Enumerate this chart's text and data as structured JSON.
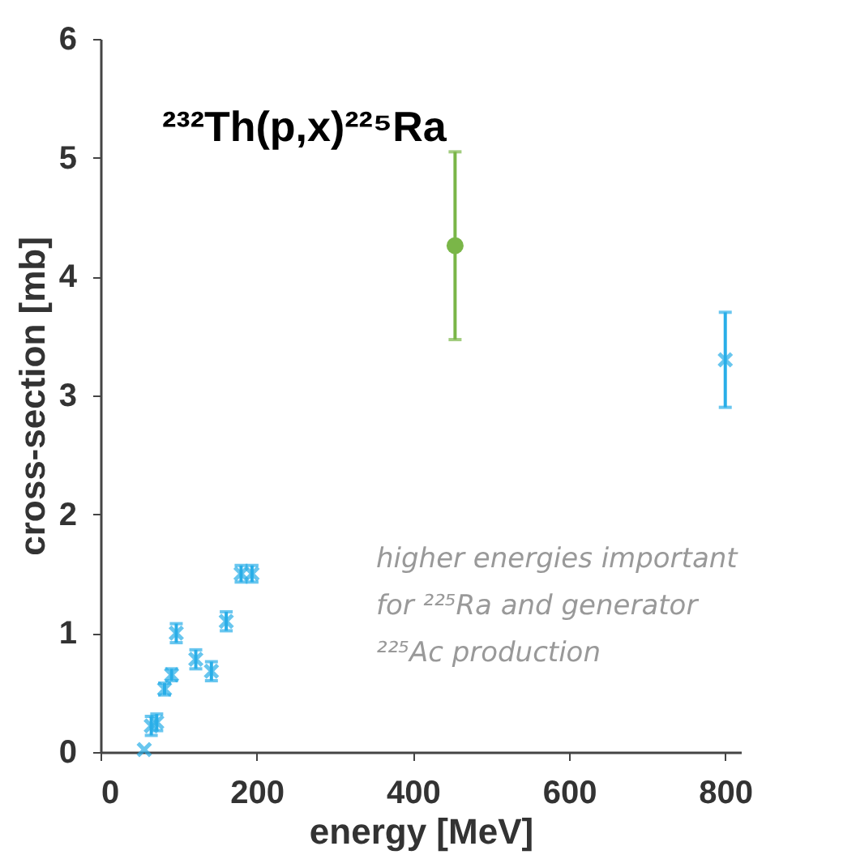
{
  "chart_data": {
    "type": "scatter",
    "title": "²³²Th(p,x)²²⁵Ra",
    "xlabel": "energy [MeV]",
    "ylabel": "cross-section [mb]",
    "annotations": [
      "higher energies important\nfor ²²⁵Ra and generator\n²²⁵Ac production"
    ],
    "series": [
      {
        "color": "#29aee8",
        "marker": "cross",
        "x": [
          56,
          65,
          72,
          82,
          91,
          97,
          122,
          142,
          161,
          180,
          194,
          800
        ],
        "values": [
          0.02,
          0.22,
          0.25,
          0.53,
          0.65,
          1.0,
          0.78,
          0.68,
          1.1,
          1.5,
          1.5,
          3.3
        ],
        "errors": [
          null,
          0.08,
          0.07,
          0.05,
          0.05,
          0.08,
          0.08,
          0.08,
          0.08,
          0.07,
          0.07,
          [
            2.9,
            3.7
          ]
        ]
      },
      {
        "color": "#7ab648",
        "marker": "circle",
        "x": [
          454
        ],
        "values": [
          4.26
        ],
        "errors": [
          [
            3.47,
            5.05
          ]
        ]
      }
    ],
    "xlim": [
      0,
      820
    ],
    "xticks": [
      0,
      200,
      400,
      600,
      800
    ],
    "ylim": [
      0,
      6
    ],
    "yticks": [
      0,
      1,
      2,
      3,
      4,
      5,
      6
    ],
    "grid": false
  }
}
